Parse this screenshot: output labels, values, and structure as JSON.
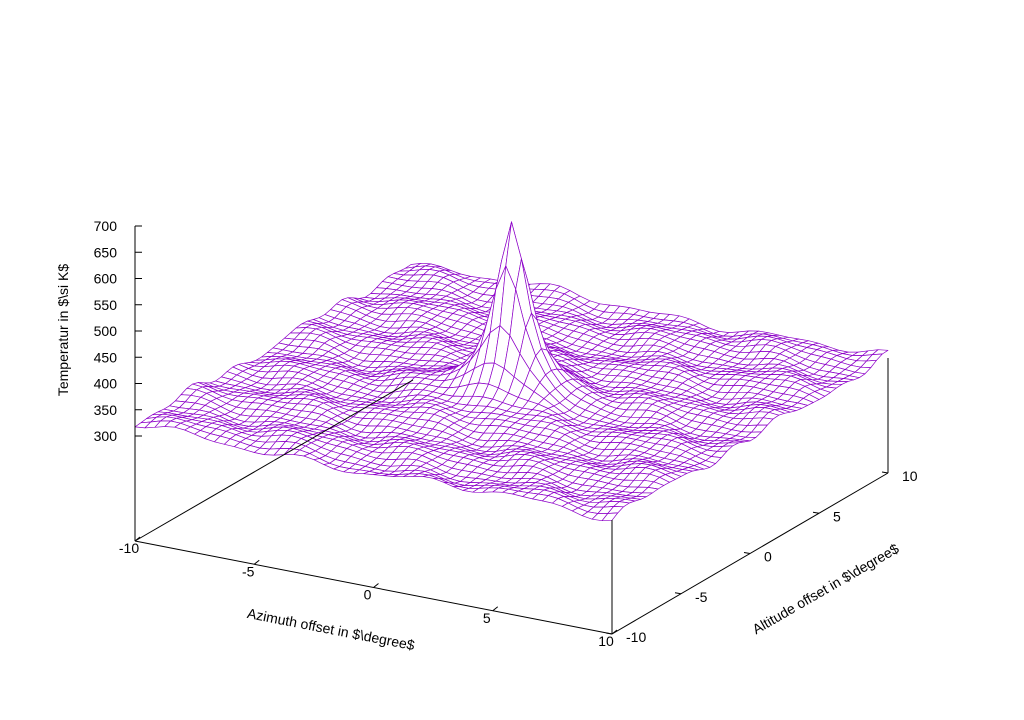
{
  "chart_data": {
    "type": "surface",
    "title": "",
    "xlabel": "Azimuth offset in $\\degree$",
    "ylabel": "Altitude offset in $\\degree$",
    "zlabel": "Temperatur in $\\si K$",
    "xlim": [
      -10,
      10
    ],
    "ylim": [
      -10,
      10
    ],
    "zlim": [
      300,
      700
    ],
    "x_ticks": [
      "-10",
      "-5",
      "0",
      "5",
      "10"
    ],
    "y_ticks": [
      "-10",
      "-5",
      "0",
      "5",
      "10"
    ],
    "z_ticks": [
      "300",
      "350",
      "400",
      "450",
      "500",
      "550",
      "600",
      "650",
      "700"
    ],
    "grid": false,
    "mesh_color": "#8c00c8",
    "surface": {
      "base_level": 305,
      "edge_rise": 15,
      "peak": {
        "x": 0,
        "y": 0,
        "value": 638
      },
      "description": "sharp central peak over a flat noisy background"
    }
  }
}
